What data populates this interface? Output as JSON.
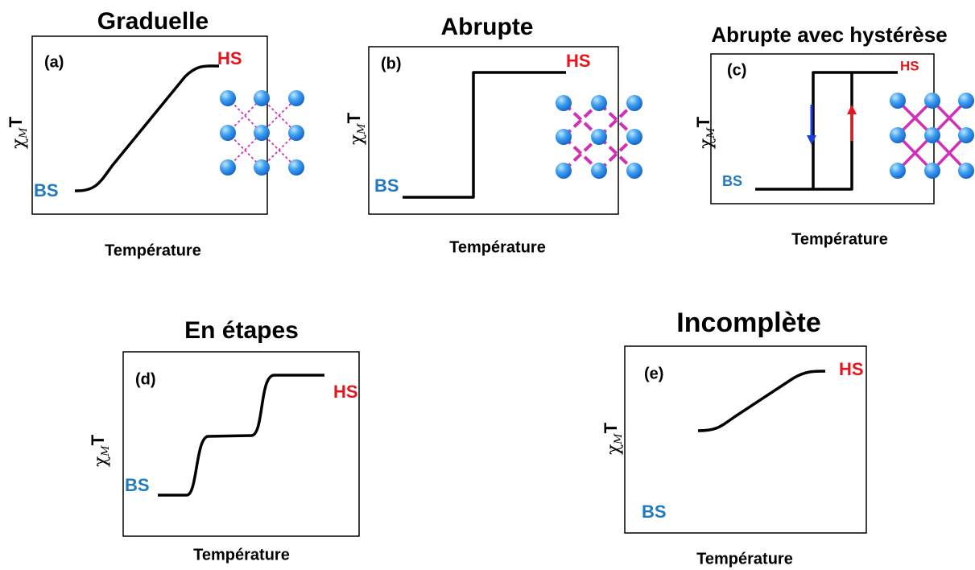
{
  "panels": [
    {
      "title": "Graduelle",
      "label": "(a)",
      "hs": "HS",
      "bs": "BS",
      "y_label": {
        "symbol": "χ",
        "subscript": "M",
        "tail": "T"
      },
      "x_label": "Température"
    },
    {
      "title": "Abrupte",
      "label": "(b)",
      "hs": "HS",
      "bs": "BS",
      "y_label": {
        "symbol": "χ",
        "subscript": "M",
        "tail": "T"
      },
      "x_label": "Température"
    },
    {
      "title": "Abrupte avec hystérèse",
      "label": "(c)",
      "hs": "HS",
      "bs": "BS",
      "y_label": {
        "symbol": "χ",
        "subscript": "M",
        "tail": "T"
      },
      "x_label": "Température"
    },
    {
      "title": "En étapes",
      "label": "(d)",
      "hs": "HS",
      "bs": "BS",
      "y_label": {
        "symbol": "χ",
        "subscript": "M",
        "tail": "T"
      },
      "x_label": "Température"
    },
    {
      "title": "Incomplète",
      "label": "(e)",
      "hs": "HS",
      "bs": "BS",
      "y_label": {
        "symbol": "χ",
        "subscript": "M",
        "tail": "T"
      },
      "x_label": "Température"
    }
  ]
}
